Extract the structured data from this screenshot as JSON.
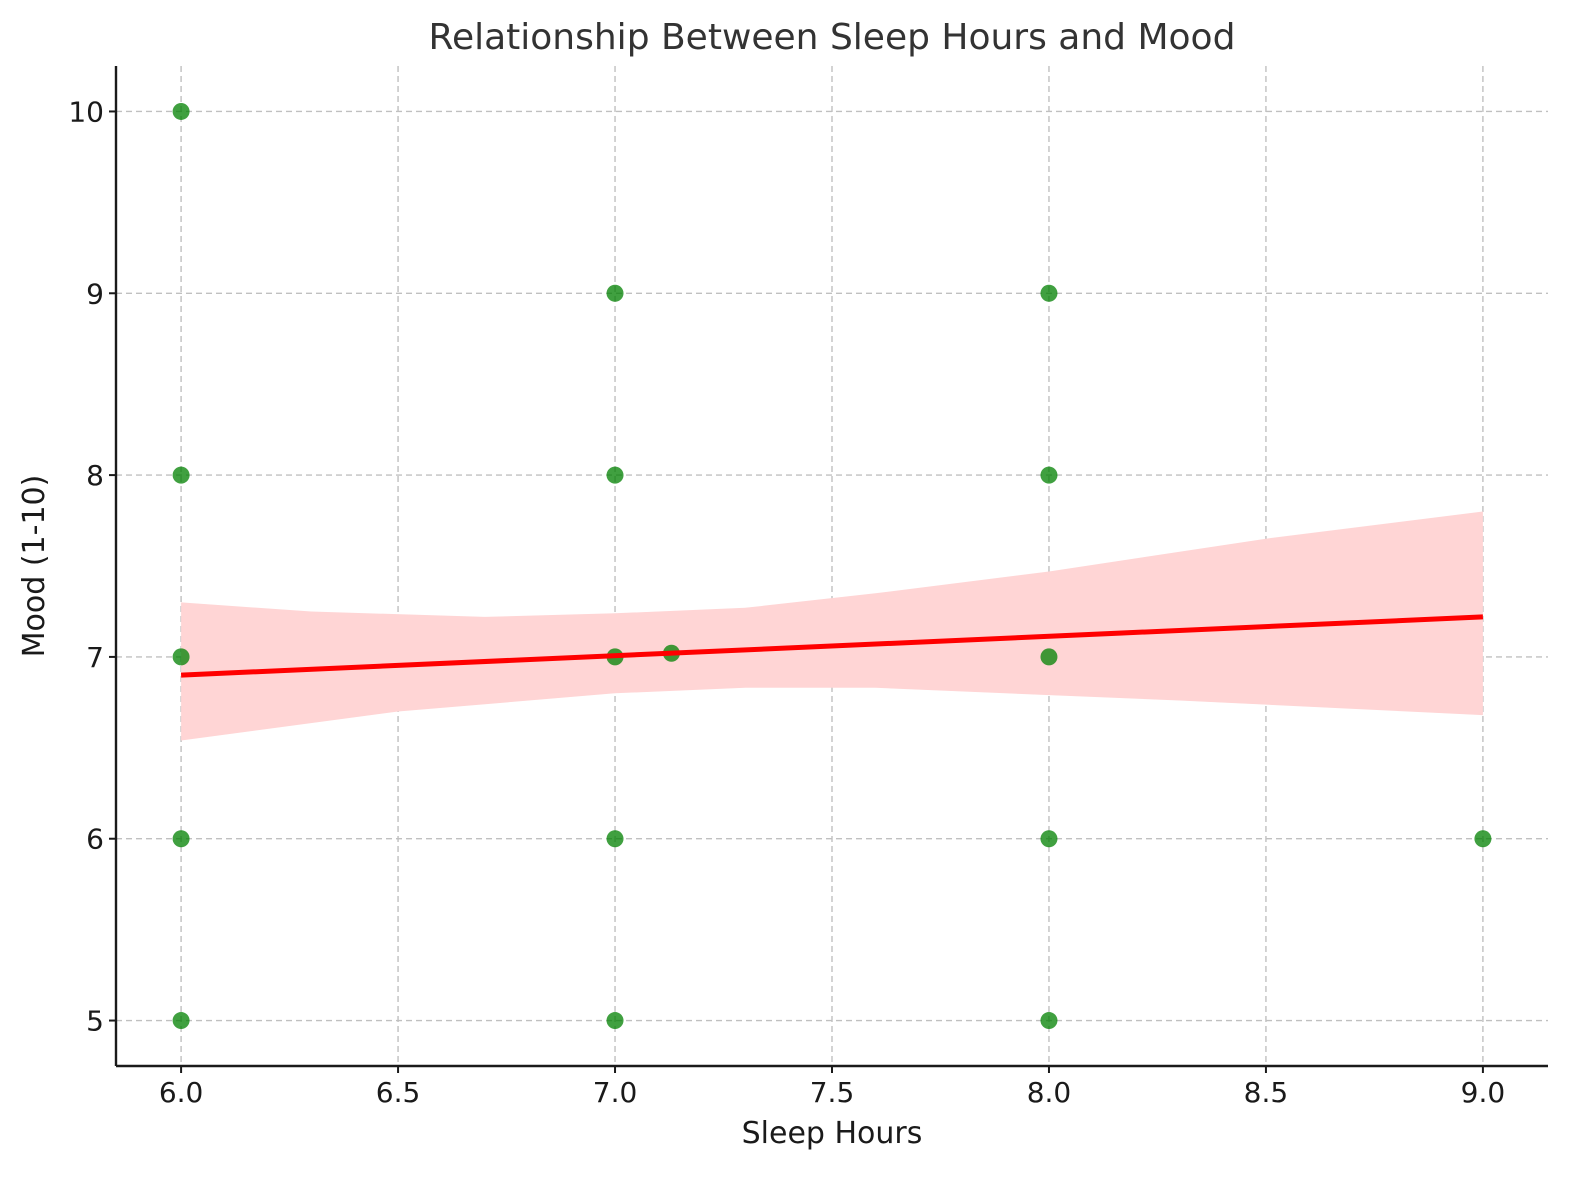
{
  "chart_data": {
    "type": "scatter",
    "title": "Relationship Between Sleep Hours and Mood",
    "xlabel": "Sleep Hours",
    "ylabel": "Mood (1-10)",
    "xlim": [
      5.85,
      9.15
    ],
    "ylim": [
      4.75,
      10.25
    ],
    "x_ticks": [
      "6.0",
      "6.5",
      "7.0",
      "7.5",
      "8.0",
      "8.5",
      "9.0"
    ],
    "y_ticks": [
      "5",
      "6",
      "7",
      "8",
      "9",
      "10"
    ],
    "grid": true,
    "points": [
      {
        "x": 6.0,
        "y": 10
      },
      {
        "x": 6.0,
        "y": 8
      },
      {
        "x": 6.0,
        "y": 7
      },
      {
        "x": 6.0,
        "y": 6
      },
      {
        "x": 6.0,
        "y": 5
      },
      {
        "x": 7.0,
        "y": 9
      },
      {
        "x": 7.0,
        "y": 8
      },
      {
        "x": 7.0,
        "y": 7
      },
      {
        "x": 7.0,
        "y": 6
      },
      {
        "x": 7.0,
        "y": 5
      },
      {
        "x": 7.13,
        "y": 7.02
      },
      {
        "x": 8.0,
        "y": 9
      },
      {
        "x": 8.0,
        "y": 8
      },
      {
        "x": 8.0,
        "y": 7
      },
      {
        "x": 8.0,
        "y": 6
      },
      {
        "x": 8.0,
        "y": 5
      },
      {
        "x": 9.0,
        "y": 6
      }
    ],
    "regression": {
      "line": [
        [
          6.0,
          6.9
        ],
        [
          9.0,
          7.22
        ]
      ],
      "ci_upper": [
        [
          6.0,
          7.3
        ],
        [
          6.3,
          7.25
        ],
        [
          6.7,
          7.22
        ],
        [
          7.0,
          7.24
        ],
        [
          7.3,
          7.27
        ],
        [
          7.6,
          7.35
        ],
        [
          8.0,
          7.47
        ],
        [
          8.5,
          7.65
        ],
        [
          9.0,
          7.8
        ]
      ],
      "ci_lower": [
        [
          6.0,
          6.54
        ],
        [
          6.5,
          6.7
        ],
        [
          7.0,
          6.8
        ],
        [
          7.3,
          6.83
        ],
        [
          7.6,
          6.83
        ],
        [
          8.0,
          6.79
        ],
        [
          8.3,
          6.76
        ],
        [
          9.0,
          6.68
        ]
      ]
    },
    "colors": {
      "points": "#008000",
      "line": "#ff0000",
      "band": "#ffd5d5"
    }
  }
}
